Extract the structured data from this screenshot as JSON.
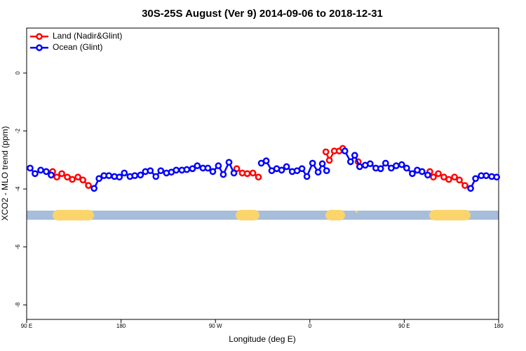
{
  "chart_data": {
    "type": "line",
    "title": "30S-25S August (Ver 9)   2014-09-06 to 2018-12-31",
    "xlabel": "Longitude (deg E)",
    "ylabel": "XCO2 - MLO trend (ppm)",
    "xlim": [
      90,
      540
    ],
    "xticks": [
      {
        "value": 90,
        "label": "90 E"
      },
      180,
      {
        "value": 270,
        "label": "90 W"
      },
      {
        "value": 360,
        "label": "0"
      },
      {
        "value": 450,
        "label": "90 E"
      },
      {
        "value": 540,
        "label": "180"
      }
    ],
    "ylim": [
      -8.5,
      1.55
    ],
    "yticks": [
      0,
      -2,
      -4,
      -6,
      -8
    ],
    "legend": "top-left",
    "series": [
      {
        "name": "Land (Nadir&Glint)",
        "color": "#ff0000",
        "x": [
          114.8,
          118.8,
          123.5,
          128.8,
          133.5,
          138.9,
          143.6,
          148.9,
          null,
          290.3,
          295.6,
          300.3,
          305.7,
          311.0,
          null,
          375.3,
          378.6,
          383.3,
          388.0,
          391.4,
          null,
          406.1,
          null,
          474.4,
          477.8,
          482.5,
          487.8,
          492.5,
          497.9,
          502.6,
          507.9
        ],
        "values": [
          -3.4,
          -3.59,
          -3.47,
          -3.59,
          -3.67,
          -3.59,
          -3.69,
          -3.88,
          null,
          -3.3,
          -3.45,
          -3.47,
          -3.45,
          -3.59,
          null,
          -2.72,
          -3.01,
          -2.69,
          -2.69,
          -2.6,
          null,
          -3.06,
          null,
          -3.4,
          -3.59,
          -3.47,
          -3.59,
          -3.67,
          -3.59,
          -3.69,
          -3.88
        ]
      },
      {
        "name": "Ocean (Glint)",
        "color": "#0000ff",
        "x": [
          93.3,
          98.0,
          103.4,
          108.7,
          113.4,
          null,
          154.3,
          159.0,
          163.7,
          168.4,
          173.7,
          178.4,
          183.1,
          188.5,
          193.1,
          198.5,
          203.2,
          207.9,
          213.2,
          217.9,
          223.3,
          228.0,
          232.6,
          238.0,
          242.7,
          248.1,
          252.7,
          258.1,
          262.8,
          267.5,
          272.8,
          277.5,
          282.9,
          287.6,
          null,
          313.7,
          318.4,
          323.7,
          328.4,
          333.1,
          337.8,
          343.2,
          347.8,
          352.5,
          357.2,
          362.6,
          367.9,
          371.9,
          376.0,
          null,
          393.4,
          398.8,
          402.8,
          407.5,
          412.8,
          417.5,
          422.9,
          427.5,
          432.2,
          437.6,
          442.3,
          447.6,
          452.3,
          457.7,
          462.4,
          467.0,
          472.4,
          null,
          513.3,
          518.0,
          523.4,
          528.1,
          533.4,
          538.1
        ],
        "values": [
          -3.28,
          -3.47,
          -3.35,
          -3.4,
          -3.52,
          null,
          -3.98,
          -3.64,
          -3.54,
          -3.54,
          -3.57,
          -3.59,
          -3.45,
          -3.57,
          -3.54,
          -3.52,
          -3.4,
          -3.37,
          -3.57,
          -3.37,
          -3.45,
          -3.42,
          -3.35,
          -3.35,
          -3.33,
          -3.3,
          -3.2,
          -3.28,
          -3.28,
          -3.4,
          -3.2,
          -3.5,
          -3.08,
          -3.45,
          null,
          -3.11,
          -3.03,
          -3.37,
          -3.3,
          -3.35,
          -3.23,
          -3.4,
          -3.37,
          -3.3,
          -3.57,
          -3.11,
          -3.42,
          -3.13,
          -3.37,
          null,
          -2.69,
          -3.06,
          -2.84,
          -3.23,
          -3.18,
          -3.13,
          -3.28,
          -3.3,
          -3.11,
          -3.28,
          -3.2,
          -3.16,
          -3.28,
          -3.47,
          -3.35,
          -3.4,
          -3.52,
          null,
          -3.98,
          -3.64,
          -3.54,
          -3.54,
          -3.57,
          -3.59
        ]
      }
    ]
  }
}
